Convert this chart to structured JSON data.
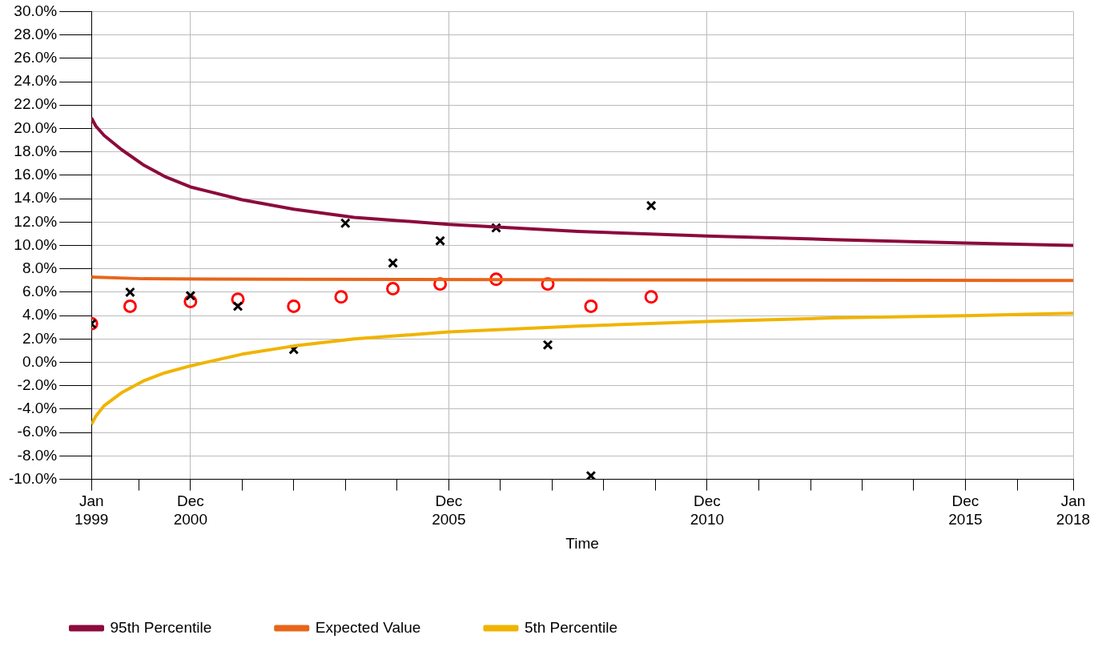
{
  "chart_data": {
    "type": "line",
    "xlabel": "Time",
    "xlim": [
      "1999-01",
      "2018-01"
    ],
    "xticks": [
      {
        "value": "1999-01",
        "label": "Jan 1999"
      },
      {
        "value": "1999-12",
        "label": null
      },
      {
        "value": "2000-12",
        "label": "Dec 2000"
      },
      {
        "value": "2001-12",
        "label": null
      },
      {
        "value": "2002-12",
        "label": null
      },
      {
        "value": "2003-12",
        "label": null
      },
      {
        "value": "2004-12",
        "label": null
      },
      {
        "value": "2005-12",
        "label": "Dec 2005"
      },
      {
        "value": "2006-12",
        "label": null
      },
      {
        "value": "2007-12",
        "label": null
      },
      {
        "value": "2008-12",
        "label": null
      },
      {
        "value": "2009-12",
        "label": null
      },
      {
        "value": "2010-12",
        "label": "Dec 2010"
      },
      {
        "value": "2011-12",
        "label": null
      },
      {
        "value": "2012-12",
        "label": null
      },
      {
        "value": "2013-12",
        "label": null
      },
      {
        "value": "2014-12",
        "label": null
      },
      {
        "value": "2015-12",
        "label": "Dec 2015"
      },
      {
        "value": "2016-12",
        "label": null
      },
      {
        "value": "2018-01",
        "label": "Jan 2018"
      }
    ],
    "ylim": [
      -10,
      30
    ],
    "yticks": [
      {
        "value": -10,
        "label": "-10.0%"
      },
      {
        "value": -8,
        "label": "-8.0%"
      },
      {
        "value": -6,
        "label": "-6.0%"
      },
      {
        "value": -4,
        "label": "-4.0%"
      },
      {
        "value": -2,
        "label": "-2.0%"
      },
      {
        "value": 0,
        "label": "0.0%"
      },
      {
        "value": 2,
        "label": "2.0%"
      },
      {
        "value": 4,
        "label": "4.0%"
      },
      {
        "value": 6,
        "label": "6.0%"
      },
      {
        "value": 8,
        "label": "8.0%"
      },
      {
        "value": 10,
        "label": "10.0%"
      },
      {
        "value": 12,
        "label": "12.0%"
      },
      {
        "value": 14,
        "label": "14.0%"
      },
      {
        "value": 16,
        "label": "16.0%"
      },
      {
        "value": 18,
        "label": "18.0%"
      },
      {
        "value": 20,
        "label": "20.0%"
      },
      {
        "value": 22,
        "label": "22.0%"
      },
      {
        "value": 24,
        "label": "24.0%"
      },
      {
        "value": 26,
        "label": "26.0%"
      },
      {
        "value": 28,
        "label": "28.0%"
      },
      {
        "value": 30,
        "label": "30.0%"
      }
    ],
    "grid": true,
    "legend": "bottom left",
    "series": [
      {
        "name": "95th Percentile",
        "color": "#8c0b3c",
        "marker": "none",
        "x": [
          "1999-01",
          "1999-02",
          "1999-04",
          "1999-08",
          "2000-01",
          "2000-06",
          "2000-12",
          "2001-12",
          "2002-12",
          "2004-02",
          "2005-12",
          "2008-06",
          "2010-12",
          "2013-05",
          "2015-12",
          "2018-01"
        ],
        "values": [
          20.9,
          20.2,
          19.4,
          18.2,
          16.9,
          15.9,
          15.0,
          13.9,
          13.1,
          12.4,
          11.8,
          11.2,
          10.8,
          10.5,
          10.2,
          10.0
        ]
      },
      {
        "name": "Expected Value",
        "color": "#e8651a",
        "marker": "none",
        "x": [
          "1999-01",
          "2000-01",
          "2002-12",
          "2018-01"
        ],
        "values": [
          7.3,
          7.15,
          7.1,
          7.0
        ]
      },
      {
        "name": "5th Percentile",
        "color": "#f0b400",
        "marker": "none",
        "x": [
          "1999-01",
          "1999-02",
          "1999-04",
          "1999-08",
          "2000-01",
          "2000-06",
          "2000-12",
          "2001-12",
          "2002-12",
          "2004-02",
          "2005-12",
          "2008-06",
          "2010-12",
          "2013-05",
          "2015-12",
          "2018-01"
        ],
        "values": [
          -5.3,
          -4.6,
          -3.7,
          -2.6,
          -1.6,
          -0.9,
          -0.3,
          0.7,
          1.4,
          2.0,
          2.6,
          3.1,
          3.5,
          3.8,
          4.0,
          4.2
        ]
      },
      {
        "type": "scatter",
        "color": "#000000",
        "marker": "cross",
        "x": [
          "1999-01",
          "1999-10",
          "2000-12",
          "2001-11",
          "2002-12",
          "2003-12",
          "2004-11",
          "2005-10",
          "2006-11",
          "2007-11",
          "2008-09",
          "2009-11"
        ],
        "values": [
          3.3,
          6.0,
          5.7,
          4.8,
          1.1,
          11.9,
          8.5,
          10.4,
          11.5,
          1.5,
          -9.7,
          13.4
        ]
      },
      {
        "type": "scatter",
        "color": "#ff0000",
        "marker": "circle",
        "x": [
          "1999-01",
          "1999-10",
          "2000-12",
          "2001-11",
          "2002-12",
          "2003-11",
          "2004-11",
          "2005-10",
          "2006-11",
          "2007-11",
          "2008-09",
          "2009-11"
        ],
        "values": [
          3.3,
          4.8,
          5.2,
          5.4,
          4.8,
          5.6,
          6.3,
          6.7,
          7.1,
          6.7,
          4.8,
          5.6
        ]
      }
    ]
  }
}
